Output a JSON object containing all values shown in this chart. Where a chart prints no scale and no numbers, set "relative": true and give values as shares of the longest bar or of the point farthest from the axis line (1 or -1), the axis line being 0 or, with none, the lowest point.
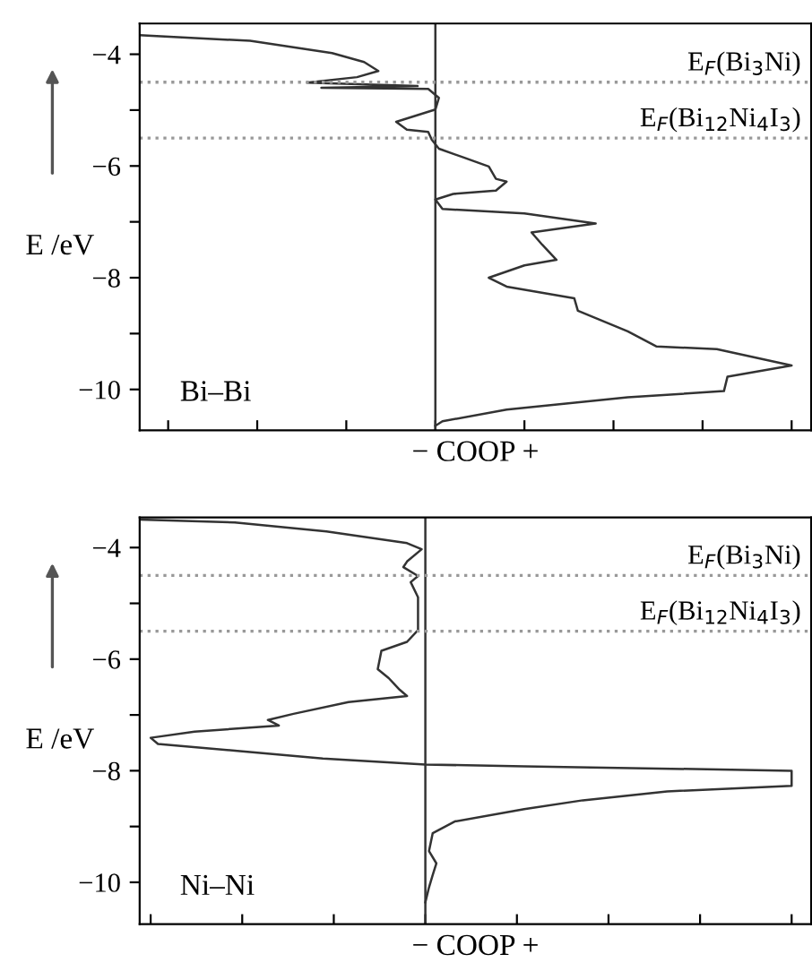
{
  "chart_data": [
    {
      "type": "line",
      "orientation": "horizontal",
      "relative": true,
      "xlabel": "− COOP +",
      "ylabel": "E /eV",
      "tick_labels": "y",
      "grid": false,
      "marker": "none",
      "line_style": "solid",
      "ylim": [
        -10.73,
        -3.45
      ],
      "yticks": [
        {
          "value": -4,
          "label": "−4"
        },
        {
          "value": -5,
          "label": null
        },
        {
          "value": -6,
          "label": "−6"
        },
        {
          "value": -7,
          "label": null
        },
        {
          "value": -8,
          "label": "−8"
        },
        {
          "value": -9,
          "label": null
        },
        {
          "value": -10,
          "label": "−10"
        }
      ],
      "ref_lines": [
        {
          "axis": "y",
          "value": -4.5,
          "label": "E$_{F}$(Bi$_{3}$Ni)",
          "color": "#999999",
          "line_style": "dotted"
        },
        {
          "axis": "y",
          "value": -5.5,
          "label": "E$_{F}$(Bi$_{12}$Ni$_{4}$I$_{3}$)",
          "color": "#999999",
          "line_style": "dotted"
        }
      ],
      "annotations": [
        "Bi–Bi"
      ],
      "series": [
        {
          "color": "#333333",
          "x": [
            -3.66,
            -3.76,
            -3.98,
            -4.14,
            -4.3,
            -4.41,
            -4.51,
            -4.57,
            -4.6,
            -4.62,
            -4.78,
            -4.99,
            -5.21,
            -5.35,
            -5.39,
            -5.53,
            -5.69,
            -5.85,
            -6.01,
            -6.23,
            -6.28,
            -6.44,
            -6.5,
            -6.6,
            -6.77,
            -6.85,
            -7.03,
            -7.19,
            -7.41,
            -7.68,
            -7.78,
            -8.0,
            -8.16,
            -8.37,
            -8.59,
            -8.96,
            -9.23,
            -9.28,
            -9.57,
            -9.77,
            -10.03,
            -10.14,
            -10.36,
            -10.57,
            -10.65
          ],
          "values": [
            -0.83,
            -0.52,
            -0.29,
            -0.2,
            -0.16,
            -0.22,
            -0.36,
            -0.05,
            -0.32,
            -0.02,
            0.01,
            0.0,
            -0.11,
            -0.08,
            -0.02,
            -0.01,
            0.01,
            0.08,
            0.15,
            0.17,
            0.2,
            0.17,
            0.05,
            0.0,
            0.02,
            0.25,
            0.45,
            0.27,
            0.3,
            0.34,
            0.25,
            0.15,
            0.2,
            0.39,
            0.4,
            0.54,
            0.62,
            0.79,
            1,
            0.82,
            0.81,
            0.54,
            0.2,
            0.02,
            0.0
          ]
        }
      ]
    },
    {
      "type": "line",
      "orientation": "horizontal",
      "relative": true,
      "xlabel": "− COOP +",
      "ylabel": "E /eV",
      "tick_labels": "y",
      "grid": false,
      "marker": "none",
      "line_style": "solid",
      "ylim": [
        -10.75,
        -3.46
      ],
      "yticks": [
        {
          "value": -4,
          "label": "−4"
        },
        {
          "value": -5,
          "label": null
        },
        {
          "value": -6,
          "label": "−6"
        },
        {
          "value": -7,
          "label": null
        },
        {
          "value": -8,
          "label": "−8"
        },
        {
          "value": -9,
          "label": null
        },
        {
          "value": -10,
          "label": "−10"
        }
      ],
      "ref_lines": [
        {
          "axis": "y",
          "value": -4.5,
          "label": "E$_{F}$(Bi$_{3}$Ni)",
          "color": "#999999",
          "line_style": "dotted"
        },
        {
          "axis": "y",
          "value": -5.5,
          "label": "E$_{F}$(Bi$_{12}$Ni$_{4}$I$_{3}$)",
          "color": "#999999",
          "line_style": "dotted"
        }
      ],
      "annotations": [
        "Ni–Ni"
      ],
      "series": [
        {
          "color": "#333333",
          "x": [
            -3.5,
            -3.55,
            -3.71,
            -3.92,
            -4.03,
            -4.25,
            -4.35,
            -4.51,
            -4.62,
            -4.89,
            -5.16,
            -5.48,
            -5.69,
            -5.85,
            -6.18,
            -6.34,
            -6.55,
            -6.66,
            -6.77,
            -6.98,
            -7.09,
            -7.19,
            -7.3,
            -7.41,
            -7.52,
            -7.64,
            -7.78,
            -7.89,
            -7.92,
            -8.0,
            -8.27,
            -8.37,
            -8.53,
            -8.69,
            -8.91,
            -9.12,
            -9.44,
            -9.66,
            -9.87,
            -10.09,
            -10.36
          ],
          "values": [
            -0.78,
            -0.52,
            -0.27,
            -0.05,
            -0.01,
            -0.05,
            -0.06,
            -0.02,
            -0.04,
            -0.02,
            -0.02,
            -0.02,
            -0.05,
            -0.12,
            -0.13,
            -0.1,
            -0.07,
            -0.05,
            -0.21,
            -0.36,
            -0.43,
            -0.4,
            -0.63,
            -0.75,
            -0.73,
            -0.52,
            -0.28,
            0.0,
            0.27,
            1,
            1,
            0.66,
            0.43,
            0.27,
            0.08,
            0.02,
            0.01,
            0.03,
            0.02,
            0.01,
            0.0
          ]
        }
      ]
    }
  ]
}
